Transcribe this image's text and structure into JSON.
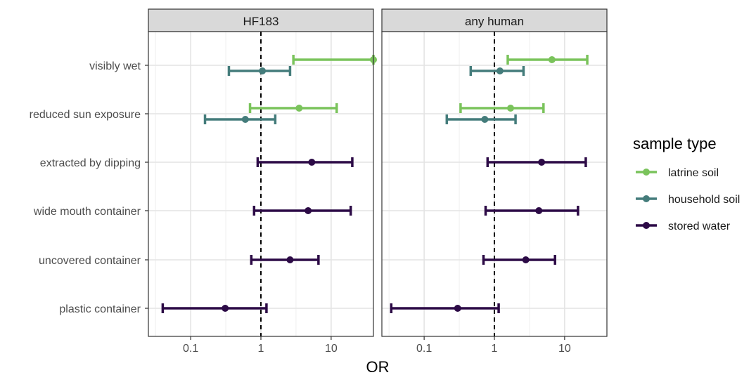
{
  "chart_data": {
    "type": "forest",
    "xlabel": "OR",
    "x_scale": "log10",
    "xlim": [
      0.025,
      40
    ],
    "x_ticks": [
      0.1,
      1,
      10
    ],
    "x_tick_labels": [
      "0.1",
      "1",
      "10"
    ],
    "reference_line": 1,
    "grid": true,
    "legend_position": "right",
    "legend": {
      "title": "sample type",
      "entries": [
        {
          "label": "latrine soil",
          "color": "#7ac35b"
        },
        {
          "label": "household soil",
          "color": "#447c7b"
        },
        {
          "label": "stored water",
          "color": "#2c0a46"
        }
      ]
    },
    "categories": [
      "visibly wet",
      "reduced sun exposure",
      "extracted by dipping",
      "wide mouth container",
      "uncovered container",
      "plastic container"
    ],
    "panels": [
      {
        "title": "HF183",
        "estimates": [
          {
            "category": "visibly wet",
            "sample_type": "latrine soil",
            "or": 40,
            "lower": 2.9,
            "upper": 40
          },
          {
            "category": "visibly wet",
            "sample_type": "household soil",
            "or": 1.05,
            "lower": 0.35,
            "upper": 2.6
          },
          {
            "category": "reduced sun exposure",
            "sample_type": "latrine soil",
            "or": 3.5,
            "lower": 0.7,
            "upper": 12
          },
          {
            "category": "reduced sun exposure",
            "sample_type": "household soil",
            "or": 0.6,
            "lower": 0.16,
            "upper": 1.6
          },
          {
            "category": "extracted by dipping",
            "sample_type": "stored water",
            "or": 5.3,
            "lower": 0.9,
            "upper": 20
          },
          {
            "category": "wide mouth container",
            "sample_type": "stored water",
            "or": 4.7,
            "lower": 0.8,
            "upper": 19
          },
          {
            "category": "uncovered container",
            "sample_type": "stored water",
            "or": 2.6,
            "lower": 0.73,
            "upper": 6.6
          },
          {
            "category": "plastic container",
            "sample_type": "stored water",
            "or": 0.31,
            "lower": 0.04,
            "upper": 1.2
          }
        ]
      },
      {
        "title": "any human",
        "estimates": [
          {
            "category": "visibly wet",
            "sample_type": "latrine soil",
            "or": 6.6,
            "lower": 1.55,
            "upper": 21
          },
          {
            "category": "visibly wet",
            "sample_type": "household soil",
            "or": 1.2,
            "lower": 0.46,
            "upper": 2.6
          },
          {
            "category": "reduced sun exposure",
            "sample_type": "latrine soil",
            "or": 1.7,
            "lower": 0.33,
            "upper": 5
          },
          {
            "category": "reduced sun exposure",
            "sample_type": "household soil",
            "or": 0.73,
            "lower": 0.21,
            "upper": 2
          },
          {
            "category": "extracted by dipping",
            "sample_type": "stored water",
            "or": 4.7,
            "lower": 0.8,
            "upper": 20
          },
          {
            "category": "wide mouth container",
            "sample_type": "stored water",
            "or": 4.3,
            "lower": 0.75,
            "upper": 15.5
          },
          {
            "category": "uncovered container",
            "sample_type": "stored water",
            "or": 2.8,
            "lower": 0.7,
            "upper": 7.3
          },
          {
            "category": "plastic container",
            "sample_type": "stored water",
            "or": 0.3,
            "lower": 0.034,
            "upper": 1.15
          }
        ]
      }
    ]
  }
}
